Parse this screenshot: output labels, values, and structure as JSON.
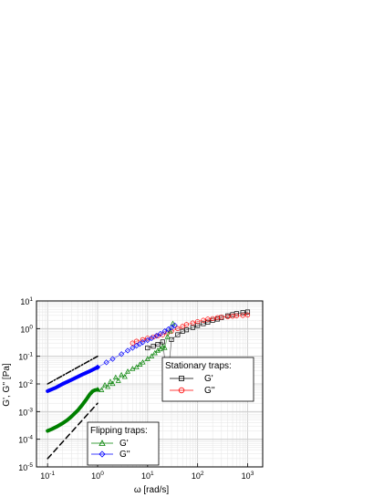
{
  "chart_data": {
    "type": "scatter",
    "xlabel": "ω [rad/s]",
    "ylabel": "G', G'' [Pa]",
    "xscale": "log",
    "yscale": "log",
    "xlim": [
      0.06,
      2000
    ],
    "ylim": [
      1e-05,
      10
    ],
    "grid": true,
    "x_ticks": [
      {
        "value": 0.1,
        "base": "10",
        "exp": "-1"
      },
      {
        "value": 1,
        "base": "10",
        "exp": "0"
      },
      {
        "value": 10,
        "base": "10",
        "exp": "1"
      },
      {
        "value": 100,
        "base": "10",
        "exp": "2"
      },
      {
        "value": 1000,
        "base": "10",
        "exp": "3"
      }
    ],
    "y_ticks": [
      {
        "value": 1e-05,
        "base": "10",
        "exp": "-5"
      },
      {
        "value": 0.0001,
        "base": "10",
        "exp": "-4"
      },
      {
        "value": 0.001,
        "base": "10",
        "exp": "-3"
      },
      {
        "value": 0.01,
        "base": "10",
        "exp": "-2"
      },
      {
        "value": 0.1,
        "base": "10",
        "exp": "-1"
      },
      {
        "value": 1,
        "base": "10",
        "exp": "0"
      },
      {
        "value": 10,
        "base": "10",
        "exp": "1"
      }
    ],
    "legends": [
      {
        "title": "Stationary traps:",
        "placement": "right",
        "entries": [
          {
            "label": "G'",
            "color": "#000000",
            "marker": "square"
          },
          {
            "label": "G''",
            "color": "#ff0000",
            "marker": "circle"
          }
        ]
      },
      {
        "title": "Flipping traps:",
        "placement": "bottom-center",
        "entries": [
          {
            "label": "G'",
            "color": "#008000",
            "marker": "triangle"
          },
          {
            "label": "G''",
            "color": "#0000ff",
            "marker": "diamond"
          }
        ]
      }
    ],
    "series": [
      {
        "group": "Flipping traps",
        "label": "G'",
        "color": "#008000",
        "style": "thick-line",
        "x": [
          0.1,
          0.12,
          0.15,
          0.2,
          0.25,
          0.3,
          0.4,
          0.5,
          0.6,
          0.7,
          0.8,
          0.9,
          1.0
        ],
        "y": [
          0.0002,
          0.00023,
          0.00028,
          0.00038,
          0.0005,
          0.00066,
          0.0011,
          0.0018,
          0.0028,
          0.0042,
          0.0055,
          0.006,
          0.0062
        ]
      },
      {
        "group": "Flipping traps",
        "label": "G'",
        "color": "#008000",
        "style": "markers",
        "x": [
          1.0,
          1.2,
          1.4,
          1.6,
          1.8,
          2.0,
          2.3,
          2.6,
          3.0,
          3.5,
          4.0,
          5.0,
          6.0,
          7.0,
          8.0,
          10,
          12,
          14,
          16,
          18,
          20,
          22,
          25,
          28,
          32
        ],
        "y": [
          0.0062,
          0.006,
          0.009,
          0.0078,
          0.012,
          0.01,
          0.017,
          0.013,
          0.021,
          0.018,
          0.028,
          0.035,
          0.04,
          0.05,
          0.06,
          0.08,
          0.1,
          0.13,
          0.16,
          0.18,
          0.22,
          0.2,
          0.5,
          0.8,
          1.5
        ]
      },
      {
        "group": "Flipping traps",
        "label": "G''",
        "color": "#0000ff",
        "style": "thick-line",
        "x": [
          0.1,
          0.15,
          0.2,
          0.3,
          0.5,
          0.7,
          1.0
        ],
        "y": [
          0.0055,
          0.0075,
          0.01,
          0.014,
          0.022,
          0.029,
          0.04
        ]
      },
      {
        "group": "Flipping traps",
        "label": "G''",
        "color": "#0000ff",
        "style": "markers",
        "x": [
          1.0,
          1.5,
          2.0,
          3.0,
          4.0,
          5.0,
          6.0,
          7.0,
          8.0,
          10,
          12,
          15,
          18,
          22,
          26,
          30,
          35
        ],
        "y": [
          0.04,
          0.06,
          0.08,
          0.12,
          0.16,
          0.2,
          0.24,
          0.28,
          0.32,
          0.38,
          0.45,
          0.55,
          0.65,
          0.8,
          0.95,
          1.1,
          1.3
        ]
      },
      {
        "group": "Stationary traps",
        "label": "G'",
        "color": "#000000",
        "style": "markers",
        "x": [
          10,
          13,
          16,
          20,
          25,
          30,
          40,
          50,
          60,
          80,
          100,
          130,
          160,
          200,
          250,
          300,
          400,
          500,
          600,
          800,
          1000
        ],
        "y": [
          0.2,
          0.23,
          0.27,
          0.33,
          0.013,
          0.4,
          0.6,
          0.8,
          0.9,
          1.1,
          1.3,
          1.5,
          1.7,
          2.0,
          2.2,
          2.5,
          2.9,
          3.2,
          3.5,
          3.8,
          4.0
        ]
      },
      {
        "group": "Stationary traps",
        "label": "G''",
        "color": "#ff0000",
        "style": "markers",
        "x": [
          5,
          6,
          8,
          10,
          13,
          16,
          20,
          25,
          30,
          40,
          50,
          60,
          80,
          100,
          130,
          160,
          200,
          250,
          300,
          400,
          500,
          600,
          800,
          1000
        ],
        "y": [
          0.3,
          0.35,
          0.4,
          0.45,
          0.5,
          0.55,
          0.6,
          0.7,
          0.8,
          1.0,
          1.2,
          1.4,
          1.6,
          1.8,
          2.0,
          2.2,
          2.3,
          2.5,
          2.6,
          2.7,
          2.8,
          2.9,
          3.0,
          3.1
        ]
      },
      {
        "group": "Reference",
        "label": "",
        "color": "#000000",
        "style": "dash-dot",
        "x": [
          0.1,
          1.0
        ],
        "y": [
          0.01,
          0.1
        ]
      },
      {
        "group": "Reference",
        "label": "",
        "color": "#000000",
        "style": "dashed",
        "x": [
          0.1,
          1.0
        ],
        "y": [
          2e-05,
          0.002
        ]
      }
    ]
  }
}
